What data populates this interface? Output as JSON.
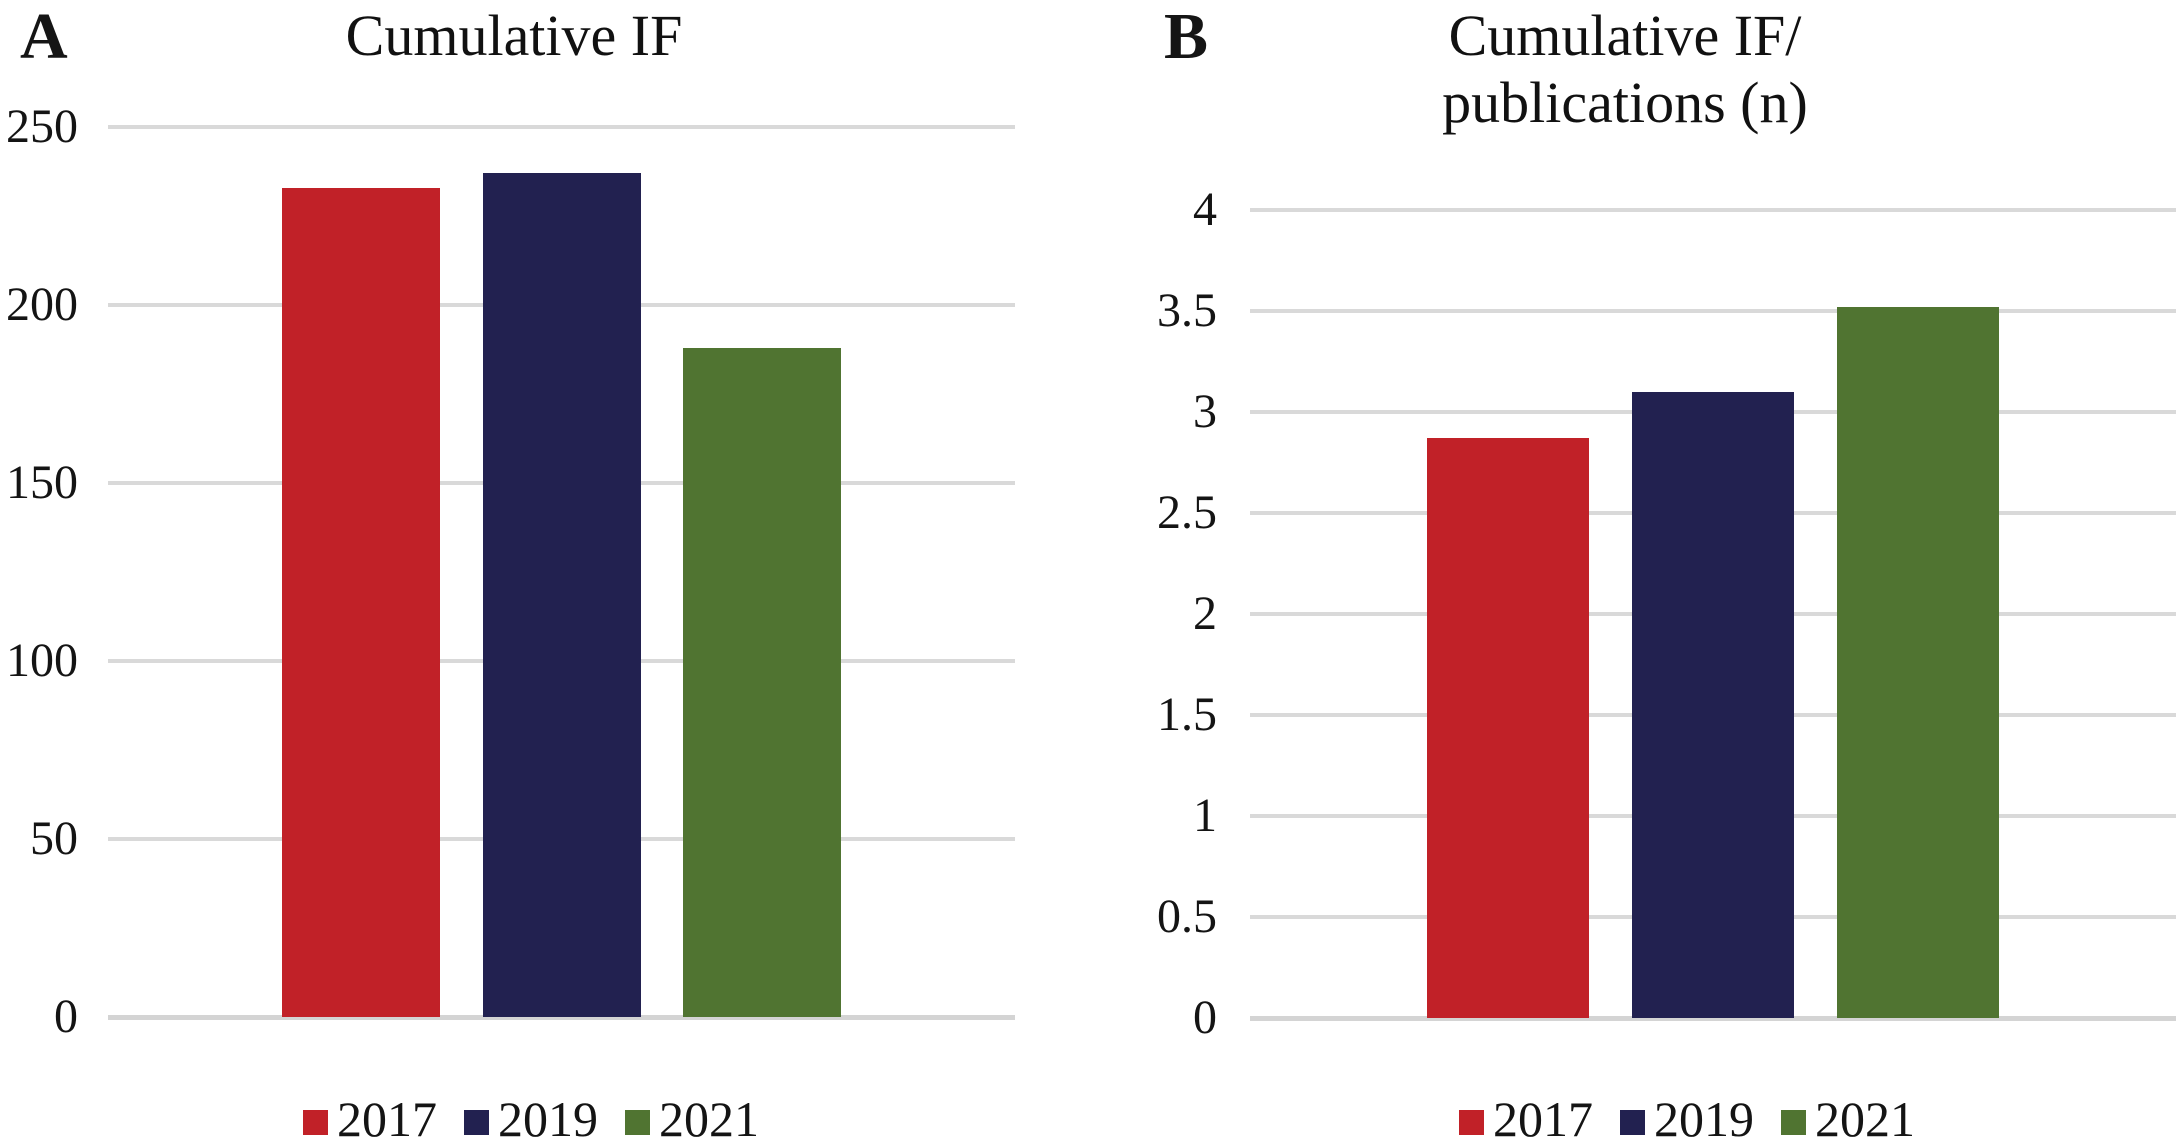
{
  "figure": {
    "background": "#ffffff",
    "grid_color": "#d9d9d9",
    "text_color": "#141414",
    "panels": [
      {
        "label": "A",
        "title_lines": [
          "Cumulative IF"
        ]
      },
      {
        "label": "B",
        "title_lines": [
          "Cumulative IF/",
          "publications (n)"
        ]
      }
    ]
  },
  "series_colors": {
    "2017": "#c12128",
    "2019": "#222150",
    "2021": "#507431"
  },
  "chart_data": [
    {
      "type": "bar",
      "title": "Cumulative IF",
      "categories": [
        "2017",
        "2019",
        "2021"
      ],
      "values": [
        233,
        237,
        188
      ],
      "colors": [
        "#c12128",
        "#222150",
        "#507431"
      ],
      "xlabel": "",
      "ylabel": "",
      "ylim": [
        0,
        250
      ],
      "ytick_step": 50,
      "ytick_labels": [
        "250",
        "200",
        "150",
        "100",
        "50",
        "0"
      ],
      "grid": true,
      "legend_position": "bottom",
      "legend": [
        {
          "label": "2017",
          "color": "#c12128"
        },
        {
          "label": "2019",
          "color": "#222150"
        },
        {
          "label": "2021",
          "color": "#507431"
        }
      ]
    },
    {
      "type": "bar",
      "title": "Cumulative IF/ publications (n)",
      "categories": [
        "2017",
        "2019",
        "2021"
      ],
      "values": [
        2.87,
        3.1,
        3.52
      ],
      "colors": [
        "#c12128",
        "#222150",
        "#507431"
      ],
      "xlabel": "",
      "ylabel": "",
      "ylim": [
        0,
        4
      ],
      "ytick_step": 0.5,
      "ytick_labels": [
        "4",
        "3.5",
        "3",
        "2.5",
        "2",
        "1.5",
        "1",
        "0.5",
        "0"
      ],
      "grid": true,
      "legend_position": "bottom",
      "legend": [
        {
          "label": "2017",
          "color": "#c12128"
        },
        {
          "label": "2019",
          "color": "#222150"
        },
        {
          "label": "2021",
          "color": "#507431"
        }
      ]
    }
  ]
}
